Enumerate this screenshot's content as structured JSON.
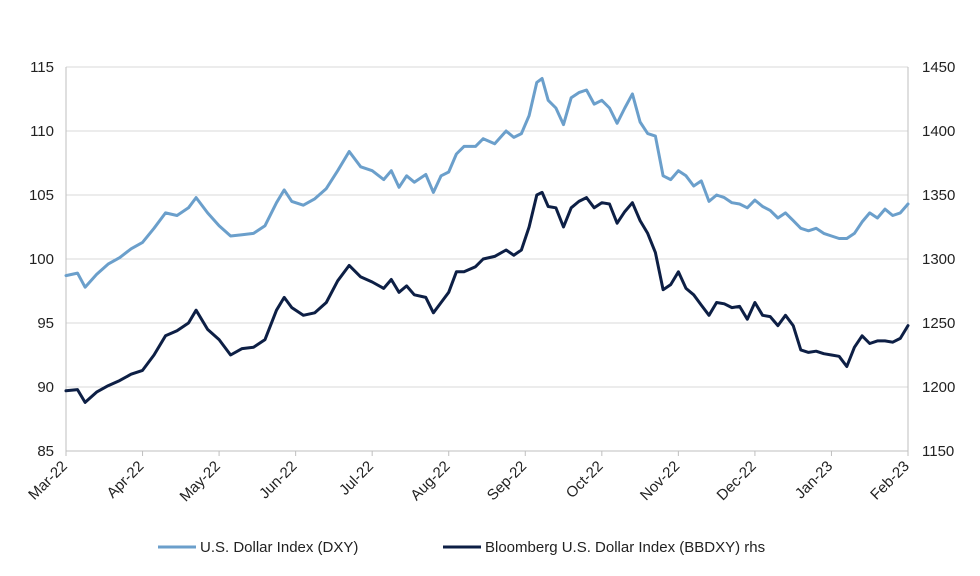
{
  "chart_data": {
    "type": "line",
    "x_labels": [
      "Mar-22",
      "Apr-22",
      "May-22",
      "Jun-22",
      "Jul-22",
      "Aug-22",
      "Sep-22",
      "Oct-22",
      "Nov-22",
      "Dec-22",
      "Jan-23",
      "Feb-23"
    ],
    "y_left": {
      "ylim": [
        85,
        115
      ],
      "ticks": [
        "85",
        "90",
        "95",
        "100",
        "105",
        "110",
        "115"
      ]
    },
    "y_right": {
      "ylim": [
        1150,
        1450
      ],
      "ticks": [
        "1150",
        "1200",
        "1250",
        "1300",
        "1350",
        "1400",
        "1450"
      ]
    },
    "grid": true,
    "legend_position": "bottom",
    "series": [
      {
        "name": "U.S. Dollar Index (DXY)",
        "axis": "left",
        "color": "#6b9fcb",
        "values": [
          [
            0,
            98.7
          ],
          [
            0.15,
            98.9
          ],
          [
            0.25,
            97.8
          ],
          [
            0.4,
            98.8
          ],
          [
            0.55,
            99.6
          ],
          [
            0.7,
            100.1
          ],
          [
            0.85,
            100.8
          ],
          [
            1.0,
            101.3
          ],
          [
            1.15,
            102.4
          ],
          [
            1.3,
            103.6
          ],
          [
            1.45,
            103.4
          ],
          [
            1.6,
            104.0
          ],
          [
            1.7,
            104.8
          ],
          [
            1.85,
            103.6
          ],
          [
            2.0,
            102.6
          ],
          [
            2.15,
            101.8
          ],
          [
            2.3,
            101.9
          ],
          [
            2.45,
            102.0
          ],
          [
            2.6,
            102.6
          ],
          [
            2.75,
            104.4
          ],
          [
            2.85,
            105.4
          ],
          [
            2.95,
            104.5
          ],
          [
            3.1,
            104.2
          ],
          [
            3.25,
            104.7
          ],
          [
            3.4,
            105.5
          ],
          [
            3.55,
            106.9
          ],
          [
            3.7,
            108.4
          ],
          [
            3.85,
            107.2
          ],
          [
            4.0,
            106.9
          ],
          [
            4.15,
            106.2
          ],
          [
            4.25,
            106.9
          ],
          [
            4.35,
            105.6
          ],
          [
            4.45,
            106.5
          ],
          [
            4.55,
            106.0
          ],
          [
            4.7,
            106.6
          ],
          [
            4.8,
            105.2
          ],
          [
            4.9,
            106.5
          ],
          [
            5.0,
            106.8
          ],
          [
            5.1,
            108.2
          ],
          [
            5.2,
            108.8
          ],
          [
            5.35,
            108.8
          ],
          [
            5.45,
            109.4
          ],
          [
            5.6,
            109.0
          ],
          [
            5.75,
            110.0
          ],
          [
            5.85,
            109.5
          ],
          [
            5.95,
            109.8
          ],
          [
            6.05,
            111.2
          ],
          [
            6.15,
            113.8
          ],
          [
            6.22,
            114.1
          ],
          [
            6.3,
            112.4
          ],
          [
            6.4,
            111.8
          ],
          [
            6.5,
            110.5
          ],
          [
            6.6,
            112.6
          ],
          [
            6.7,
            113.0
          ],
          [
            6.8,
            113.2
          ],
          [
            6.9,
            112.1
          ],
          [
            7.0,
            112.4
          ],
          [
            7.1,
            111.8
          ],
          [
            7.2,
            110.6
          ],
          [
            7.3,
            111.8
          ],
          [
            7.4,
            112.9
          ],
          [
            7.5,
            110.7
          ],
          [
            7.6,
            109.8
          ],
          [
            7.7,
            109.6
          ],
          [
            7.8,
            106.5
          ],
          [
            7.9,
            106.2
          ],
          [
            8.0,
            106.9
          ],
          [
            8.1,
            106.5
          ],
          [
            8.2,
            105.7
          ],
          [
            8.3,
            106.1
          ],
          [
            8.4,
            104.5
          ],
          [
            8.5,
            105.0
          ],
          [
            8.6,
            104.8
          ],
          [
            8.7,
            104.4
          ],
          [
            8.8,
            104.3
          ],
          [
            8.9,
            104.0
          ],
          [
            9.0,
            104.6
          ],
          [
            9.1,
            104.1
          ],
          [
            9.2,
            103.8
          ],
          [
            9.3,
            103.2
          ],
          [
            9.4,
            103.6
          ],
          [
            9.5,
            103.0
          ],
          [
            9.6,
            102.4
          ],
          [
            9.7,
            102.2
          ],
          [
            9.8,
            102.4
          ],
          [
            9.9,
            102.0
          ],
          [
            10.0,
            101.8
          ],
          [
            10.1,
            101.6
          ],
          [
            10.2,
            101.6
          ],
          [
            10.3,
            102.0
          ],
          [
            10.4,
            102.9
          ],
          [
            10.5,
            103.6
          ],
          [
            10.6,
            103.2
          ],
          [
            10.7,
            103.9
          ],
          [
            10.8,
            103.4
          ],
          [
            10.9,
            103.6
          ],
          [
            11.0,
            104.3
          ]
        ]
      },
      {
        "name": "Bloomberg U.S. Dollar Index (BBDXY) rhs",
        "axis": "right",
        "color": "#0d1f45",
        "values": [
          [
            0,
            1197
          ],
          [
            0.15,
            1198
          ],
          [
            0.25,
            1188
          ],
          [
            0.4,
            1196
          ],
          [
            0.55,
            1201
          ],
          [
            0.7,
            1205
          ],
          [
            0.85,
            1210
          ],
          [
            1.0,
            1213
          ],
          [
            1.15,
            1225
          ],
          [
            1.3,
            1240
          ],
          [
            1.45,
            1244
          ],
          [
            1.6,
            1250
          ],
          [
            1.7,
            1260
          ],
          [
            1.85,
            1245
          ],
          [
            2.0,
            1237
          ],
          [
            2.15,
            1225
          ],
          [
            2.3,
            1230
          ],
          [
            2.45,
            1231
          ],
          [
            2.6,
            1237
          ],
          [
            2.75,
            1260
          ],
          [
            2.85,
            1270
          ],
          [
            2.95,
            1262
          ],
          [
            3.1,
            1256
          ],
          [
            3.25,
            1258
          ],
          [
            3.4,
            1266
          ],
          [
            3.55,
            1283
          ],
          [
            3.7,
            1295
          ],
          [
            3.85,
            1286
          ],
          [
            4.0,
            1282
          ],
          [
            4.15,
            1277
          ],
          [
            4.25,
            1284
          ],
          [
            4.35,
            1274
          ],
          [
            4.45,
            1279
          ],
          [
            4.55,
            1272
          ],
          [
            4.7,
            1270
          ],
          [
            4.8,
            1258
          ],
          [
            4.9,
            1266
          ],
          [
            5.0,
            1274
          ],
          [
            5.1,
            1290
          ],
          [
            5.2,
            1290
          ],
          [
            5.35,
            1294
          ],
          [
            5.45,
            1300
          ],
          [
            5.6,
            1302
          ],
          [
            5.75,
            1307
          ],
          [
            5.85,
            1303
          ],
          [
            5.95,
            1307
          ],
          [
            6.05,
            1325
          ],
          [
            6.15,
            1350
          ],
          [
            6.22,
            1352
          ],
          [
            6.3,
            1341
          ],
          [
            6.4,
            1340
          ],
          [
            6.5,
            1325
          ],
          [
            6.6,
            1340
          ],
          [
            6.7,
            1345
          ],
          [
            6.8,
            1348
          ],
          [
            6.9,
            1340
          ],
          [
            7.0,
            1344
          ],
          [
            7.1,
            1343
          ],
          [
            7.2,
            1328
          ],
          [
            7.3,
            1337
          ],
          [
            7.4,
            1344
          ],
          [
            7.5,
            1330
          ],
          [
            7.6,
            1320
          ],
          [
            7.7,
            1305
          ],
          [
            7.8,
            1276
          ],
          [
            7.9,
            1280
          ],
          [
            8.0,
            1290
          ],
          [
            8.1,
            1277
          ],
          [
            8.2,
            1272
          ],
          [
            8.3,
            1264
          ],
          [
            8.4,
            1256
          ],
          [
            8.5,
            1266
          ],
          [
            8.6,
            1265
          ],
          [
            8.7,
            1262
          ],
          [
            8.8,
            1263
          ],
          [
            8.9,
            1253
          ],
          [
            9.0,
            1266
          ],
          [
            9.1,
            1256
          ],
          [
            9.2,
            1255
          ],
          [
            9.3,
            1248
          ],
          [
            9.4,
            1256
          ],
          [
            9.5,
            1248
          ],
          [
            9.6,
            1229
          ],
          [
            9.7,
            1227
          ],
          [
            9.8,
            1228
          ],
          [
            9.9,
            1226
          ],
          [
            10.0,
            1225
          ],
          [
            10.1,
            1224
          ],
          [
            10.2,
            1216
          ],
          [
            10.3,
            1231
          ],
          [
            10.4,
            1240
          ],
          [
            10.5,
            1234
          ],
          [
            10.6,
            1236
          ],
          [
            10.7,
            1236
          ],
          [
            10.8,
            1235
          ],
          [
            10.9,
            1238
          ],
          [
            11.0,
            1248
          ]
        ]
      }
    ]
  }
}
